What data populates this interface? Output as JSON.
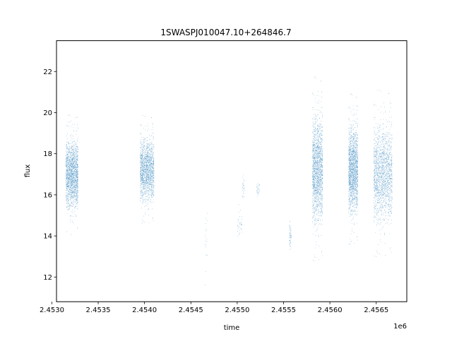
{
  "chart_data": {
    "type": "scatter",
    "title": "1SWASPJ010047.10+264846.7",
    "xlabel": "time",
    "ylabel": "flux",
    "x_offset_label": "1e6",
    "xlim": [
      2.45305,
      2.45683
    ],
    "ylim": [
      10.8,
      23.5
    ],
    "x_ticks": [
      2.453,
      2.4535,
      2.454,
      2.4545,
      2.455,
      2.4555,
      2.456,
      2.4565
    ],
    "x_tick_labels": [
      "2.4530",
      "2.4535",
      "2.4540",
      "2.4545",
      "2.4550",
      "2.4555",
      "2.4560",
      "2.4565"
    ],
    "y_ticks": [
      12,
      14,
      16,
      18,
      20,
      22
    ],
    "y_tick_labels": [
      "12",
      "14",
      "16",
      "18",
      "20",
      "22"
    ],
    "grid": false,
    "marker_color": "#1f77b4",
    "series": [
      {
        "clusters": [
          {
            "x_min": 2.45315,
            "x_max": 2.45328,
            "y_center": 17.0,
            "y_spread": 1.4,
            "density": 1800
          },
          {
            "x_min": 2.45395,
            "x_max": 2.4541,
            "y_center": 17.2,
            "y_spread": 1.3,
            "density": 1600
          },
          {
            "x_min": 2.45465,
            "x_max": 2.45468,
            "y_center": 14.0,
            "y_spread": 1.2,
            "density": 20
          },
          {
            "x_min": 2.455,
            "x_max": 2.45505,
            "y_center": 14.5,
            "y_spread": 0.5,
            "density": 35
          },
          {
            "x_min": 2.45505,
            "x_max": 2.45508,
            "y_center": 16.3,
            "y_spread": 0.5,
            "density": 30
          },
          {
            "x_min": 2.45521,
            "x_max": 2.45524,
            "y_center": 16.3,
            "y_spread": 0.3,
            "density": 30
          },
          {
            "x_min": 2.45556,
            "x_max": 2.45558,
            "y_center": 14.0,
            "y_spread": 0.6,
            "density": 60
          },
          {
            "x_min": 2.45581,
            "x_max": 2.45592,
            "y_center": 17.2,
            "y_spread": 2.2,
            "density": 4500
          },
          {
            "x_min": 2.4562,
            "x_max": 2.4563,
            "y_center": 17.2,
            "y_spread": 1.8,
            "density": 2600
          },
          {
            "x_min": 2.45647,
            "x_max": 2.45667,
            "y_center": 17.0,
            "y_spread": 2.0,
            "density": 4200
          }
        ]
      }
    ]
  }
}
